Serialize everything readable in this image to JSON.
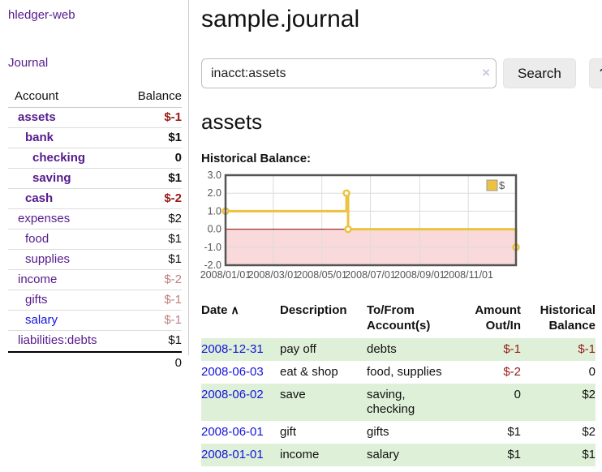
{
  "sidebar": {
    "app_title": "hledger-web",
    "journal_link": "Journal",
    "accounts_table": {
      "col_account": "Account",
      "col_balance": "Balance",
      "rows": [
        {
          "name": "assets",
          "depth": 0,
          "bold": true,
          "balance": "$-1",
          "bal_class": "neg-strong"
        },
        {
          "name": "bank",
          "depth": 1,
          "bold": true,
          "balance": "$1",
          "bal_class": ""
        },
        {
          "name": "checking",
          "depth": 2,
          "bold": true,
          "balance": "0",
          "bal_class": ""
        },
        {
          "name": "saving",
          "depth": 2,
          "bold": true,
          "balance": "$1",
          "bal_class": ""
        },
        {
          "name": "cash",
          "depth": 1,
          "bold": true,
          "balance": "$-2",
          "bal_class": "neg-strong"
        },
        {
          "name": "expenses",
          "depth": 0,
          "bold": false,
          "balance": "$2",
          "bal_class": ""
        },
        {
          "name": "food",
          "depth": 1,
          "bold": false,
          "balance": "$1",
          "bal_class": ""
        },
        {
          "name": "supplies",
          "depth": 1,
          "bold": false,
          "balance": "$1",
          "bal_class": ""
        },
        {
          "name": "income",
          "depth": 0,
          "bold": false,
          "balance": "$-2",
          "bal_class": "neg-soft"
        },
        {
          "name": "gifts",
          "depth": 1,
          "bold": false,
          "balance": "$-1",
          "bal_class": "neg-soft"
        },
        {
          "name": "salary",
          "depth": 1,
          "bold": false,
          "blue": true,
          "balance": "$-1",
          "bal_class": "neg-soft"
        },
        {
          "name": "liabilities:debts",
          "depth": 0,
          "bold": false,
          "balance": "$1",
          "bal_class": ""
        }
      ],
      "total": "0"
    }
  },
  "header": {
    "title": "sample.journal"
  },
  "search": {
    "value": "inacct:assets",
    "clear_icon": "×",
    "button_label": "Search",
    "help_label": "?"
  },
  "account_page": {
    "heading": "assets",
    "chart_title": "Historical Balance:"
  },
  "chart_data": {
    "type": "line",
    "title": "Historical Balance:",
    "legend": {
      "label": "$",
      "position": "top-right",
      "swatch_color": "#edc240"
    },
    "series": [
      {
        "name": "$",
        "color": "#edc240",
        "step": true,
        "points": [
          {
            "date": "2008-01-01",
            "x_day": 0,
            "y": 1
          },
          {
            "date": "2008-06-01",
            "x_day": 152,
            "y": 2
          },
          {
            "date": "2008-06-03",
            "x_day": 154,
            "y": 0
          },
          {
            "date": "2008-12-31",
            "x_day": 365,
            "y": -1
          }
        ]
      }
    ],
    "x_axis": {
      "range_days": [
        0,
        365
      ],
      "ticks": [
        {
          "day": 0,
          "label": "2008/01/01"
        },
        {
          "day": 60,
          "label": "2008/03/01"
        },
        {
          "day": 121,
          "label": "2008/05/01"
        },
        {
          "day": 182,
          "label": "2008/07/01"
        },
        {
          "day": 244,
          "label": "2008/09/01"
        },
        {
          "day": 305,
          "label": "2008/11/01"
        }
      ]
    },
    "y_axis": {
      "range": [
        -2,
        3
      ],
      "ticks": [
        3,
        2,
        1,
        0,
        -1,
        -2
      ],
      "tick_labels": [
        "3.0",
        "2.0",
        "1.0",
        "0.0",
        "-1.0",
        "-2.0"
      ]
    },
    "negative_region": {
      "from": -2,
      "to": 0,
      "color": "#f9d9d9"
    },
    "zero_line_color": "#8b0000",
    "grid_color": "#dcdcdc",
    "border_color": "#545454",
    "tick_text_color": "#545454",
    "grid": true
  },
  "register_table": {
    "columns": {
      "date": "Date",
      "description": "Description",
      "accounts": "To/From Account(s)",
      "amount": "Amount Out/In",
      "balance": "Historical Balance"
    },
    "sort_indicator": "∧",
    "rows": [
      {
        "date": "2008-12-31",
        "description": "pay off",
        "accounts": "debts",
        "amount": "$-1",
        "amount_neg": true,
        "balance": "$-1",
        "balance_neg": true,
        "striped": true
      },
      {
        "date": "2008-06-03",
        "description": "eat & shop",
        "accounts": "food, supplies",
        "amount": "$-2",
        "amount_neg": true,
        "balance": "0",
        "balance_neg": false,
        "striped": false
      },
      {
        "date": "2008-06-02",
        "description": "save",
        "accounts": "saving, checking",
        "amount": "0",
        "amount_neg": false,
        "balance": "$2",
        "balance_neg": false,
        "striped": true
      },
      {
        "date": "2008-06-01",
        "description": "gift",
        "accounts": "gifts",
        "amount": "$1",
        "amount_neg": false,
        "balance": "$2",
        "balance_neg": false,
        "striped": false
      },
      {
        "date": "2008-01-01",
        "description": "income",
        "accounts": "salary",
        "amount": "$1",
        "amount_neg": false,
        "balance": "$1",
        "balance_neg": false,
        "striped": true
      }
    ]
  },
  "colors": {
    "link_purple": "#551a8b",
    "link_blue": "#1414dc",
    "negative_strong": "#981a16",
    "negative_soft": "#c07f7f",
    "row_stripe_green": "#dff0d8",
    "chart_line_gold": "#edc240"
  }
}
